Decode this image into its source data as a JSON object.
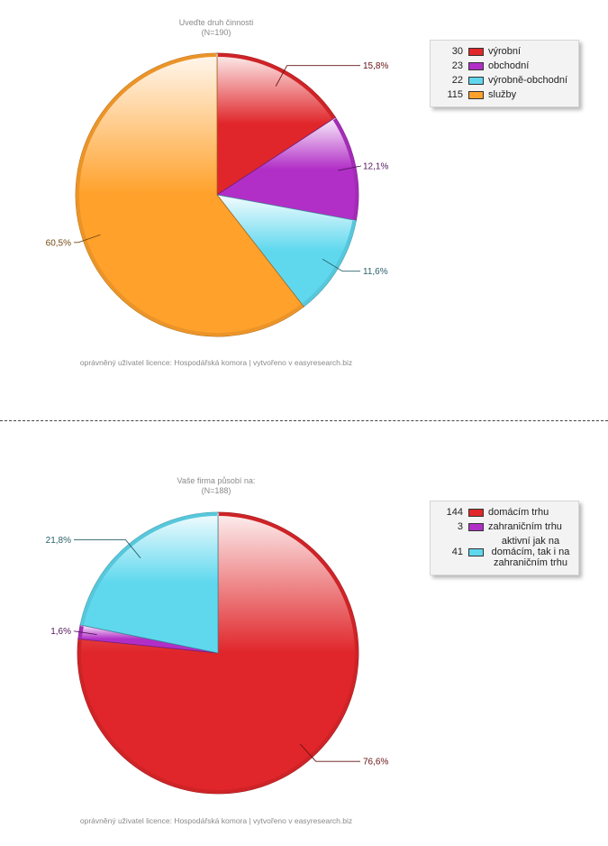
{
  "charts": [
    {
      "title": "Uveďte druh činnosti",
      "subtitle": "(N=190)",
      "credit": "oprávněný uživatel licence: Hospodářská komora | vytvořeno v easyresearch.biz",
      "legend": [
        {
          "count": "30",
          "label": "výrobní"
        },
        {
          "count": "23",
          "label": "obchodní"
        },
        {
          "count": "22",
          "label": "výrobně-obchodní"
        },
        {
          "count": "115",
          "label": "služby"
        }
      ]
    },
    {
      "title": "Vaše firma působí na:",
      "subtitle": "(N=188)",
      "credit": "oprávněný uživatel licence: Hospodářská komora | vytvořeno v easyresearch.biz",
      "legend": [
        {
          "count": "144",
          "label": "domácím trhu"
        },
        {
          "count": "3",
          "label": "zahraničním trhu"
        },
        {
          "count": "41",
          "label": "aktivní jak na domácím, tak i na zahraničním trhu"
        }
      ]
    }
  ],
  "chart_data": [
    {
      "type": "pie",
      "title": "Uveďte druh činnosti",
      "subtitle": "(N=190)",
      "slices": [
        {
          "name": "výrobní",
          "count": 30,
          "value": 15.8,
          "label": "15,8%",
          "color": "#e0262a"
        },
        {
          "name": "obchodní",
          "count": 23,
          "value": 12.1,
          "label": "12,1%",
          "color": "#b22fc7"
        },
        {
          "name": "výrobně-obchodní",
          "count": 22,
          "value": 11.6,
          "label": "11,6%",
          "color": "#5fd8ee"
        },
        {
          "name": "služby",
          "count": 115,
          "value": 60.5,
          "label": "60,5%",
          "color": "#ffa12b"
        }
      ]
    },
    {
      "type": "pie",
      "title": "Vaše firma působí na:",
      "subtitle": "(N=188)",
      "slices": [
        {
          "name": "domácím trhu",
          "count": 144,
          "value": 76.6,
          "label": "76,6%",
          "color": "#e0262a"
        },
        {
          "name": "zahraničním trhu",
          "count": 3,
          "value": 1.6,
          "label": "1,6%",
          "color": "#b22fc7"
        },
        {
          "name": "aktivní jak na domácím, tak i na zahraničním trhu",
          "count": 41,
          "value": 21.8,
          "label": "21,8%",
          "color": "#5fd8ee"
        }
      ]
    }
  ]
}
